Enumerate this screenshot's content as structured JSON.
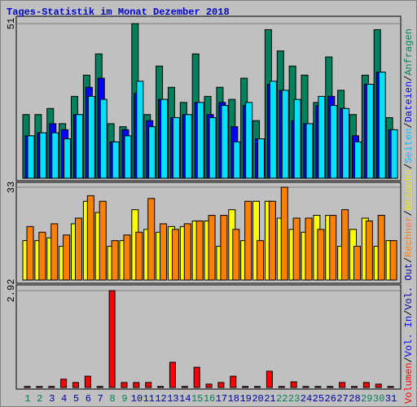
{
  "title": "Tages-Statistik im Monat Dezember 2018",
  "categories": [
    "1",
    "2",
    "3",
    "4",
    "5",
    "6",
    "7",
    "8",
    "9",
    "10",
    "11",
    "12",
    "13",
    "14",
    "15",
    "16",
    "17",
    "18",
    "19",
    "20",
    "21",
    "22",
    "23",
    "24",
    "25",
    "26",
    "27",
    "28",
    "29",
    "30",
    "31"
  ],
  "category_colors": [
    "#00805c",
    "#00805c",
    "#0000a0",
    "#0000a0",
    "#0000a0",
    "#0000a0",
    "#0000a0",
    "#00805c",
    "#00805c",
    "#0000a0",
    "#0000a0",
    "#0000a0",
    "#0000a0",
    "#0000a0",
    "#00805c",
    "#00805c",
    "#0000a0",
    "#0000a0",
    "#0000a0",
    "#0000a0",
    "#0000a0",
    "#00805c",
    "#00805c",
    "#0000a0",
    "#0000a0",
    "#0000a0",
    "#0000a0",
    "#0000a0",
    "#00805c",
    "#00805c",
    "#0000a0"
  ],
  "legend": [
    {
      "text": "Volumen",
      "color": "#ff0000"
    },
    {
      "text": "/",
      "color": "#000000"
    },
    {
      "text": "Vol. In",
      "color": "#0000ff"
    },
    {
      "text": "/",
      "color": "#000000"
    },
    {
      "text": "Vol. Out",
      "color": "#0000a0"
    },
    {
      "text": "/",
      "color": "#000000"
    },
    {
      "text": "Rechner",
      "color": "#ff8000"
    },
    {
      "text": "/",
      "color": "#000000"
    },
    {
      "text": "Besuche",
      "color": "#e8e800"
    },
    {
      "text": "/",
      "color": "#000000"
    },
    {
      "text": "Seiten",
      "color": "#00c0ff"
    },
    {
      "text": "/",
      "color": "#000000"
    },
    {
      "text": "Dateien",
      "color": "#0000ff"
    },
    {
      "text": "/",
      "color": "#000000"
    },
    {
      "text": "Anfragen",
      "color": "#00805c"
    }
  ],
  "chart_data": [
    {
      "type": "bar",
      "ylim": [
        0,
        51
      ],
      "yticks": [
        51
      ],
      "series": [
        {
          "name": "Anfragen",
          "color": "#00805c",
          "values": [
            21,
            21,
            23,
            18,
            27,
            34,
            41,
            18,
            17,
            51,
            21,
            37,
            30,
            25,
            41,
            27,
            30,
            26,
            33,
            19,
            49,
            42,
            37,
            34,
            25,
            40,
            29,
            21,
            34,
            49,
            20
          ]
        },
        {
          "name": "Dateien",
          "color": "#0000ff",
          "values": [
            14,
            15,
            18,
            16,
            21,
            30,
            33,
            12,
            16,
            28,
            19,
            26,
            20,
            21,
            25,
            21,
            25,
            17,
            24,
            13,
            31,
            29,
            19,
            18,
            24,
            27,
            23,
            14,
            31,
            35,
            16
          ]
        },
        {
          "name": "Seiten",
          "color": "#00e0ff",
          "values": [
            14,
            15,
            15,
            13,
            21,
            27,
            26,
            12,
            14,
            32,
            17,
            26,
            20,
            21,
            25,
            20,
            24,
            12,
            25,
            13,
            32,
            29,
            26,
            18,
            27,
            24,
            23,
            12,
            31,
            35,
            16
          ]
        }
      ]
    },
    {
      "type": "bar",
      "ylim": [
        0,
        33
      ],
      "yticks": [
        33
      ],
      "series": [
        {
          "name": "Besuche",
          "color": "#ffff00",
          "values": [
            14,
            14,
            15,
            12,
            20,
            28,
            24,
            12,
            14,
            25,
            18,
            17,
            19,
            19,
            21,
            21,
            12,
            25,
            14,
            28,
            28,
            22,
            18,
            17,
            23,
            23,
            12,
            18,
            22,
            12,
            14
          ]
        },
        {
          "name": "Rechner",
          "color": "#ff8000",
          "values": [
            19,
            17,
            20,
            16,
            22,
            30,
            28,
            14,
            16,
            17,
            29,
            20,
            18,
            20,
            21,
            23,
            23,
            18,
            28,
            14,
            28,
            33,
            22,
            22,
            18,
            23,
            25,
            12,
            21,
            23,
            14
          ]
        }
      ]
    },
    {
      "type": "bar",
      "ylim": [
        0,
        2.92
      ],
      "yticks": [
        2.92
      ],
      "series": [
        {
          "name": "Volumen",
          "color": "#ff0000",
          "values": [
            0.03,
            0.03,
            0.03,
            0.25,
            0.15,
            0.34,
            0.03,
            2.92,
            0.15,
            0.15,
            0.15,
            0.03,
            0.76,
            0.03,
            0.61,
            0.1,
            0.15,
            0.34,
            0.03,
            0.03,
            0.49,
            0.03,
            0.17,
            0.03,
            0.03,
            0.03,
            0.15,
            0.03,
            0.15,
            0.1,
            0.03
          ]
        }
      ]
    }
  ]
}
